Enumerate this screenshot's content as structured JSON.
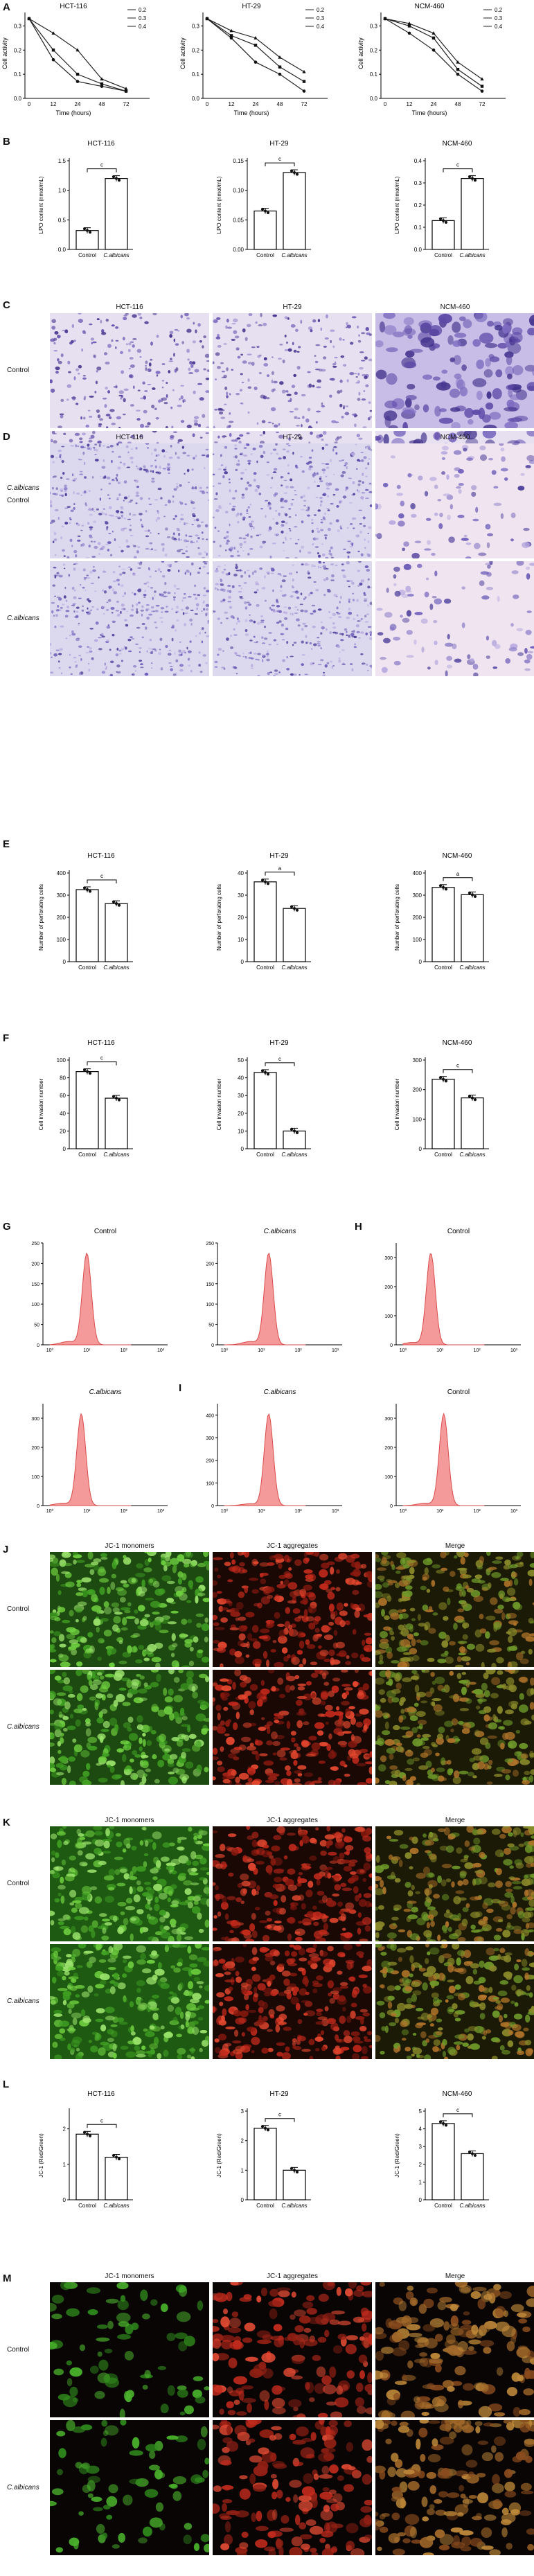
{
  "panels": [
    "A",
    "B",
    "C",
    "D",
    "E",
    "F",
    "G",
    "H",
    "I",
    "J",
    "K",
    "L",
    "M"
  ],
  "conditions": {
    "control": "Control",
    "treated": "C.albicans"
  },
  "panel_A": {
    "ylabel": "Cell activity",
    "xlabel": "Time (hours)",
    "xticks": [
      "0",
      "12",
      "24",
      "48",
      "72"
    ],
    "yticks": [
      "0.0",
      "0.1",
      "0.2",
      "0.3"
    ],
    "legend": [
      "0.2",
      "0.3",
      "0.4"
    ]
  },
  "panel_B": {
    "ylabel": "LPO content (nmol/mL)",
    "sig": "c"
  },
  "panel_E": {
    "ylabel": "Number of perforating cells",
    "sig": [
      "c",
      "a",
      "a"
    ]
  },
  "panel_F": {
    "ylabel": "Cell invasion number",
    "sig": [
      "c",
      "c",
      "c"
    ]
  },
  "panel_L": {
    "ylabel": "JC-1 (Red/Green)",
    "sig": [
      "c",
      "c",
      "c"
    ]
  },
  "cell_lines": [
    "HCT-116",
    "HT-29",
    "NCM-460"
  ],
  "jc1_titles": [
    "JC-1 monomers",
    "JC-1 aggregates",
    "Merge"
  ],
  "flow_xticks": [
    "10⁰",
    "10¹",
    "10²",
    "10³"
  ],
  "chart_data": [
    {
      "type": "line",
      "panel": "A",
      "title": "HCT-116",
      "x": [
        0,
        12,
        24,
        48,
        72
      ],
      "series": [
        {
          "name": "0.2",
          "values": [
            0.33,
            0.16,
            0.07,
            0.05,
            0.03
          ]
        },
        {
          "name": "0.3",
          "values": [
            0.33,
            0.2,
            0.1,
            0.06,
            0.03
          ]
        },
        {
          "name": "0.4",
          "values": [
            0.33,
            0.27,
            0.2,
            0.08,
            0.04
          ]
        }
      ],
      "xlabel": "Time (hours)",
      "ylabel": "Cell activity",
      "ylim": [
        0,
        0.35
      ]
    },
    {
      "type": "line",
      "panel": "A",
      "title": "HT-29",
      "x": [
        0,
        12,
        24,
        48,
        72
      ],
      "series": [
        {
          "name": "0.2",
          "values": [
            0.33,
            0.25,
            0.15,
            0.1,
            0.03
          ]
        },
        {
          "name": "0.3",
          "values": [
            0.33,
            0.26,
            0.22,
            0.13,
            0.07
          ]
        },
        {
          "name": "0.4",
          "values": [
            0.33,
            0.28,
            0.25,
            0.17,
            0.11
          ]
        }
      ],
      "xlabel": "Time (hours)",
      "ylabel": "Cell activity",
      "ylim": [
        0,
        0.35
      ]
    },
    {
      "type": "line",
      "panel": "A",
      "title": "NCM-460",
      "x": [
        0,
        12,
        24,
        48,
        72
      ],
      "series": [
        {
          "name": "0.2",
          "values": [
            0.33,
            0.27,
            0.2,
            0.1,
            0.03
          ]
        },
        {
          "name": "0.3",
          "values": [
            0.33,
            0.3,
            0.25,
            0.12,
            0.05
          ]
        },
        {
          "name": "0.4",
          "values": [
            0.33,
            0.31,
            0.27,
            0.15,
            0.08
          ]
        }
      ],
      "xlabel": "Time (hours)",
      "ylabel": "Cell activity",
      "ylim": [
        0,
        0.35
      ]
    },
    {
      "type": "bar",
      "panel": "B",
      "title": "HCT-116",
      "categories": [
        "Control",
        "C.albicans"
      ],
      "values": [
        0.32,
        1.2
      ],
      "ylim": [
        0,
        1.5
      ],
      "yticks": [
        "0.0",
        "0.5",
        "1.0",
        "1.5"
      ],
      "sig": "c"
    },
    {
      "type": "bar",
      "panel": "B",
      "title": "HT-29",
      "categories": [
        "Control",
        "C.albicans"
      ],
      "values": [
        0.065,
        0.13
      ],
      "ylim": [
        0,
        0.15
      ],
      "yticks": [
        "0.00",
        "0.05",
        "0.10",
        "0.15"
      ],
      "sig": "c"
    },
    {
      "type": "bar",
      "panel": "B",
      "title": "NCM-460",
      "categories": [
        "Control",
        "C.albicans"
      ],
      "values": [
        0.13,
        0.32
      ],
      "ylim": [
        0,
        0.4
      ],
      "yticks": [
        "0.0",
        "0.1",
        "0.2",
        "0.3",
        "0.4"
      ],
      "sig": "c"
    },
    {
      "type": "bar",
      "panel": "E",
      "title": "HCT-116",
      "categories": [
        "Control",
        "C.albicans"
      ],
      "values": [
        325,
        262
      ],
      "ylim": [
        0,
        400
      ],
      "yticks": [
        "0",
        "100",
        "200",
        "300",
        "400"
      ],
      "sig": "c"
    },
    {
      "type": "bar",
      "panel": "E",
      "title": "HT-29",
      "categories": [
        "Control",
        "C.albicans"
      ],
      "values": [
        36,
        24
      ],
      "ylim": [
        0,
        40
      ],
      "yticks": [
        "0",
        "10",
        "20",
        "30",
        "40"
      ],
      "sig": "a"
    },
    {
      "type": "bar",
      "panel": "E",
      "title": "NCM-460",
      "categories": [
        "Control",
        "C.albicans"
      ],
      "values": [
        335,
        302
      ],
      "ylim": [
        0,
        400
      ],
      "yticks": [
        "0",
        "100",
        "200",
        "300",
        "400"
      ],
      "sig": "a"
    },
    {
      "type": "bar",
      "panel": "F",
      "title": "HCT-116",
      "categories": [
        "Control",
        "C.albicans"
      ],
      "values": [
        87,
        57
      ],
      "ylim": [
        0,
        100
      ],
      "yticks": [
        "0",
        "20",
        "40",
        "60",
        "80",
        "100"
      ],
      "sig": "c"
    },
    {
      "type": "bar",
      "panel": "F",
      "title": "HT-29",
      "categories": [
        "Control",
        "C.albicans"
      ],
      "values": [
        43,
        10
      ],
      "ylim": [
        0,
        50
      ],
      "yticks": [
        "0",
        "10",
        "20",
        "30",
        "40",
        "50"
      ],
      "sig": "c"
    },
    {
      "type": "bar",
      "panel": "F",
      "title": "NCM-460",
      "categories": [
        "Control",
        "C.albicans"
      ],
      "values": [
        235,
        172
      ],
      "ylim": [
        0,
        300
      ],
      "yticks": [
        "0",
        "100",
        "200",
        "300"
      ],
      "sig": "c"
    },
    {
      "type": "bar",
      "panel": "L",
      "title": "HCT-116",
      "categories": [
        "Control",
        "C.albicans"
      ],
      "values": [
        1.85,
        1.2
      ],
      "ylim": [
        0,
        2.5
      ],
      "yticks": [
        "0",
        "1",
        "2"
      ],
      "sig": "c"
    },
    {
      "type": "bar",
      "panel": "L",
      "title": "HT-29",
      "categories": [
        "Control",
        "C.albicans"
      ],
      "values": [
        2.42,
        1.0
      ],
      "ylim": [
        0,
        3
      ],
      "yticks": [
        "0",
        "1",
        "2",
        "3"
      ],
      "sig": "c"
    },
    {
      "type": "bar",
      "panel": "L",
      "title": "NCM-460",
      "categories": [
        "Control",
        "C.albicans"
      ],
      "values": [
        4.3,
        2.6
      ],
      "ylim": [
        0,
        5
      ],
      "yticks": [
        "0",
        "1",
        "2",
        "3",
        "4",
        "5"
      ],
      "sig": "c"
    },
    {
      "type": "area",
      "panel": "G",
      "title": "Control",
      "peak": 1.0,
      "ymax": 250,
      "yticks": [
        "0",
        "50",
        "100",
        "150",
        "200",
        "250"
      ]
    },
    {
      "type": "area",
      "panel": "G",
      "title": "C.albicans",
      "peak": 1.2,
      "ymax": 250,
      "yticks": [
        "0",
        "50",
        "100",
        "150",
        "200",
        "250"
      ]
    },
    {
      "type": "area",
      "panel": "H",
      "title": "Control",
      "peak": 0.75,
      "ymax": 350,
      "yticks": [
        "0",
        "100",
        "200",
        "300"
      ]
    },
    {
      "type": "area",
      "panel": "H",
      "title": "C.albicans",
      "peak": 0.85,
      "ymax": 350,
      "yticks": [
        "0",
        "100",
        "200",
        "300"
      ]
    },
    {
      "type": "area",
      "panel": "I",
      "title": "Control",
      "peak": 1.1,
      "ymax": 350,
      "yticks": [
        "0",
        "100",
        "200",
        "300"
      ]
    },
    {
      "type": "area",
      "panel": "I",
      "title": "C.albicans",
      "peak": 1.2,
      "ymax": 450,
      "yticks": [
        "0",
        "100",
        "200",
        "300",
        "400"
      ]
    }
  ]
}
